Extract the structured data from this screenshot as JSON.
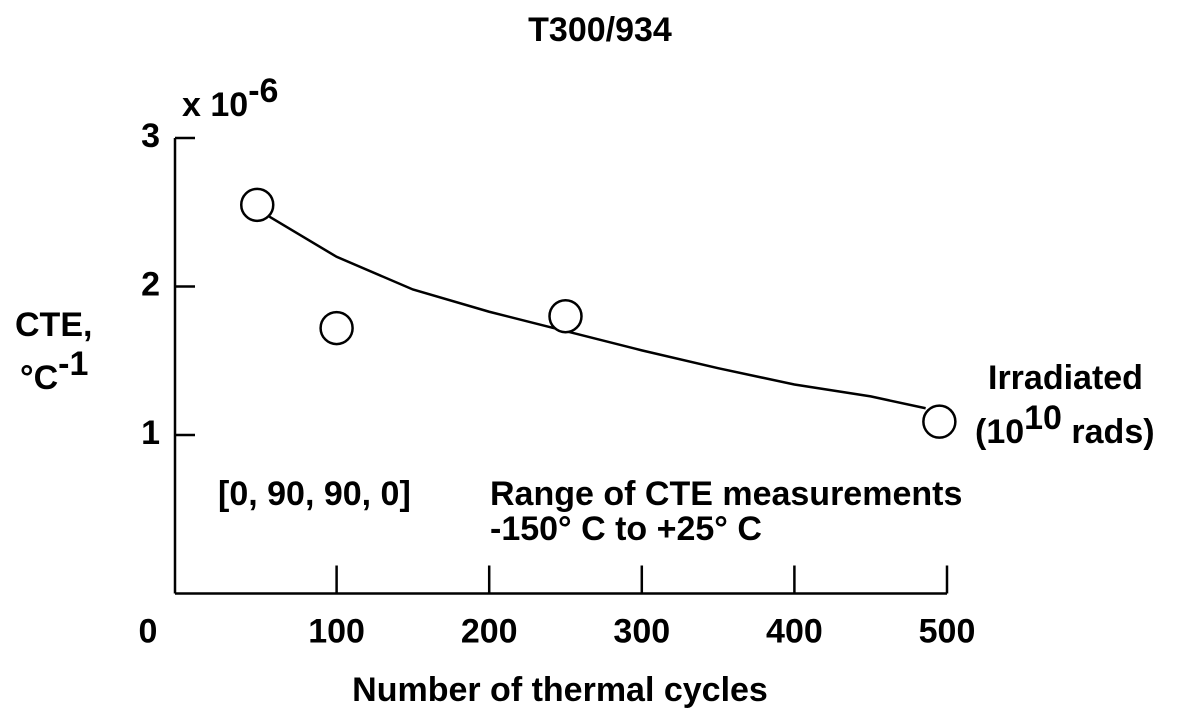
{
  "chart_data": {
    "type": "scatter",
    "title": "T300/934",
    "x_label": "Number of thermal cycles",
    "y_label": "CTE,",
    "y_unit": "°C",
    "y_unit_exp": "-1",
    "y_scale_prefix": "x 10",
    "y_scale_exp": "-6",
    "annotations": {
      "layup": "[0, 90, 90, 0]",
      "range_title": "Range of CTE measurements",
      "range": "-150° C to +25° C",
      "irradiated": "Irradiated",
      "dose_open": "(10",
      "dose_exp": "10",
      "dose_close": " rads)"
    },
    "x": [
      48,
      100,
      250,
      495
    ],
    "values": [
      2.55,
      1.72,
      1.8,
      1.09
    ],
    "fit": {
      "x": [
        56,
        100,
        150,
        200,
        250,
        300,
        350,
        400,
        450,
        486
      ],
      "y": [
        2.47,
        2.2,
        1.98,
        1.83,
        1.7,
        1.57,
        1.45,
        1.34,
        1.26,
        1.18
      ]
    },
    "xlim": [
      0,
      500
    ],
    "ylim": [
      0,
      3
    ],
    "xticks": [
      0,
      100,
      200,
      300,
      400,
      500
    ],
    "yticks": [
      1,
      2,
      3
    ],
    "color": "#000000"
  }
}
